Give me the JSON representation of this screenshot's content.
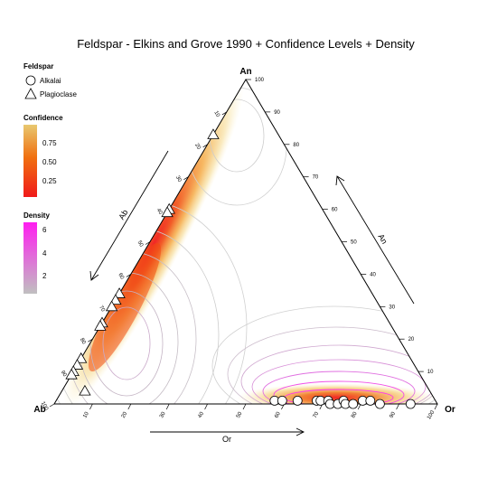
{
  "chart_data": {
    "type": "scatter",
    "subtype": "ternary",
    "title": "Feldspar - Elkins and Grove 1990 + Confidence Levels + Density",
    "corners": {
      "top": "An",
      "left": "Ab",
      "right": "Or"
    },
    "axes": [
      {
        "name": "An",
        "ticks": [
          10,
          20,
          30,
          40,
          50,
          60,
          70,
          80,
          90,
          100
        ],
        "range": [
          0,
          100
        ]
      },
      {
        "name": "Ab",
        "ticks": [
          10,
          20,
          30,
          40,
          50,
          60,
          70,
          80,
          90,
          100
        ],
        "range": [
          0,
          100
        ]
      },
      {
        "name": "Or",
        "ticks": [
          10,
          20,
          30,
          40,
          50,
          60,
          70,
          80,
          90,
          100
        ],
        "range": [
          0,
          100
        ]
      }
    ],
    "legend": {
      "title": "Feldspar",
      "position": "top-left",
      "items": [
        {
          "label": "Alkalai",
          "shape": "circle"
        },
        {
          "label": "Plagioclase",
          "shape": "triangle"
        }
      ]
    },
    "confidence_scale": {
      "title": "Confidence",
      "ticks": [
        "0.75",
        "0.50",
        "0.25"
      ],
      "colors": [
        "#e8c870",
        "#f07010",
        "#f01a1a"
      ]
    },
    "density_scale": {
      "title": "Density",
      "ticks": [
        "6",
        "4",
        "2"
      ],
      "colors": [
        "#ff1ef0",
        "#c0c0c0"
      ]
    },
    "series": [
      {
        "name": "Alkalai",
        "points": [
          {
            "Or": 57,
            "Ab": 42,
            "An": 1
          },
          {
            "Or": 59,
            "Ab": 40,
            "An": 1
          },
          {
            "Or": 63,
            "Ab": 36,
            "An": 1
          },
          {
            "Or": 68,
            "Ab": 31,
            "An": 1
          },
          {
            "Or": 69,
            "Ab": 30,
            "An": 1
          },
          {
            "Or": 71,
            "Ab": 28,
            "An": 1
          },
          {
            "Or": 72,
            "Ab": 28,
            "An": 0
          },
          {
            "Or": 74,
            "Ab": 26,
            "An": 0
          },
          {
            "Or": 75,
            "Ab": 24,
            "An": 1
          },
          {
            "Or": 76,
            "Ab": 24,
            "An": 0
          },
          {
            "Or": 78,
            "Ab": 22,
            "An": 0
          },
          {
            "Or": 80,
            "Ab": 19,
            "An": 1
          },
          {
            "Or": 82,
            "Ab": 17,
            "An": 1
          },
          {
            "Or": 85,
            "Ab": 15,
            "An": 0
          },
          {
            "Or": 93,
            "Ab": 7,
            "An": 0
          }
        ]
      },
      {
        "name": "Plagioclase",
        "points": [
          {
            "Or": 0,
            "Ab": 17,
            "An": 83
          },
          {
            "Or": 0,
            "Ab": 40,
            "An": 60
          },
          {
            "Or": 0,
            "Ab": 41,
            "An": 59
          },
          {
            "Or": 0,
            "Ab": 66,
            "An": 34
          },
          {
            "Or": 0,
            "Ab": 68,
            "An": 32
          },
          {
            "Or": 0,
            "Ab": 70,
            "An": 30
          },
          {
            "Or": 0,
            "Ab": 75,
            "An": 25
          },
          {
            "Or": 0,
            "Ab": 76,
            "An": 24
          },
          {
            "Or": 0,
            "Ab": 86,
            "An": 14
          },
          {
            "Or": 0,
            "Ab": 88,
            "An": 12
          },
          {
            "Or": 0,
            "Ab": 90,
            "An": 10
          },
          {
            "Or": 0,
            "Ab": 91,
            "An": 9
          },
          {
            "Or": 6,
            "Ab": 90,
            "An": 4
          }
        ]
      }
    ]
  }
}
